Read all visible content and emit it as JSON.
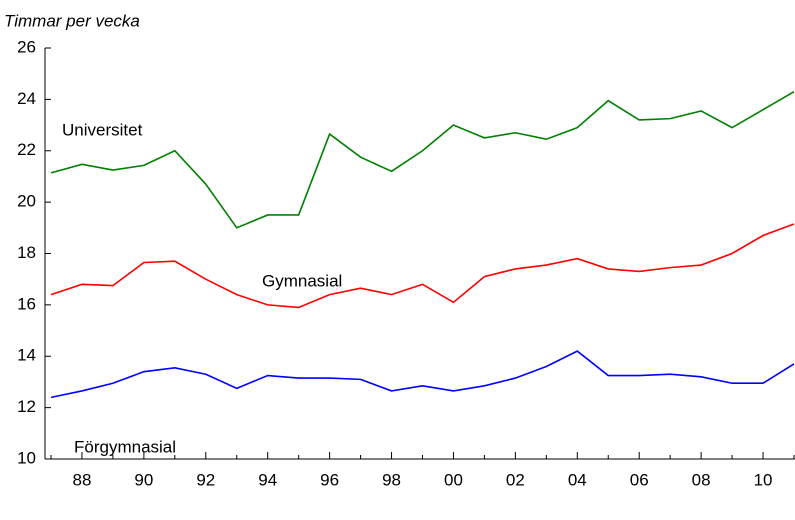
{
  "chart_data": {
    "type": "line",
    "y_label": "Timmar per vecka",
    "categories": [
      null,
      "88",
      null,
      "90",
      null,
      "92",
      null,
      "94",
      null,
      "96",
      null,
      "98",
      null,
      "00",
      null,
      "02",
      null,
      "04",
      null,
      "06",
      null,
      "08",
      null,
      "10",
      null
    ],
    "series": [
      {
        "name": "Universitet",
        "color": "#008000",
        "values": [
          21.14,
          21.47,
          21.25,
          21.43,
          22.0,
          20.7,
          19.0,
          19.5,
          19.5,
          22.65,
          21.75,
          21.2,
          22.0,
          23.0,
          22.5,
          22.7,
          22.45,
          22.9,
          23.95,
          23.2,
          23.25,
          23.55,
          22.9,
          23.6,
          24.3
        ]
      },
      {
        "name": "Gymnasial",
        "color": "#ff0000",
        "values": [
          16.4,
          16.8,
          16.75,
          17.65,
          17.7,
          17.0,
          16.4,
          16.0,
          15.9,
          16.4,
          16.65,
          16.4,
          16.8,
          16.1,
          17.1,
          17.4,
          17.55,
          17.8,
          17.4,
          17.3,
          17.45,
          17.55,
          18.0,
          18.7,
          19.15
        ]
      },
      {
        "name": "Förgymnasial",
        "color": "#0000ff",
        "values": [
          12.4,
          12.65,
          12.95,
          13.4,
          13.55,
          13.3,
          12.75,
          13.25,
          13.15,
          13.15,
          13.1,
          12.65,
          12.85,
          12.65,
          12.85,
          13.15,
          13.6,
          14.2,
          13.25,
          13.25,
          13.3,
          13.2,
          12.95,
          12.95,
          13.7
        ]
      }
    ],
    "ylim": [
      10,
      26
    ],
    "yticks": [
      10,
      12,
      14,
      16,
      18,
      20,
      22,
      24,
      26
    ]
  }
}
